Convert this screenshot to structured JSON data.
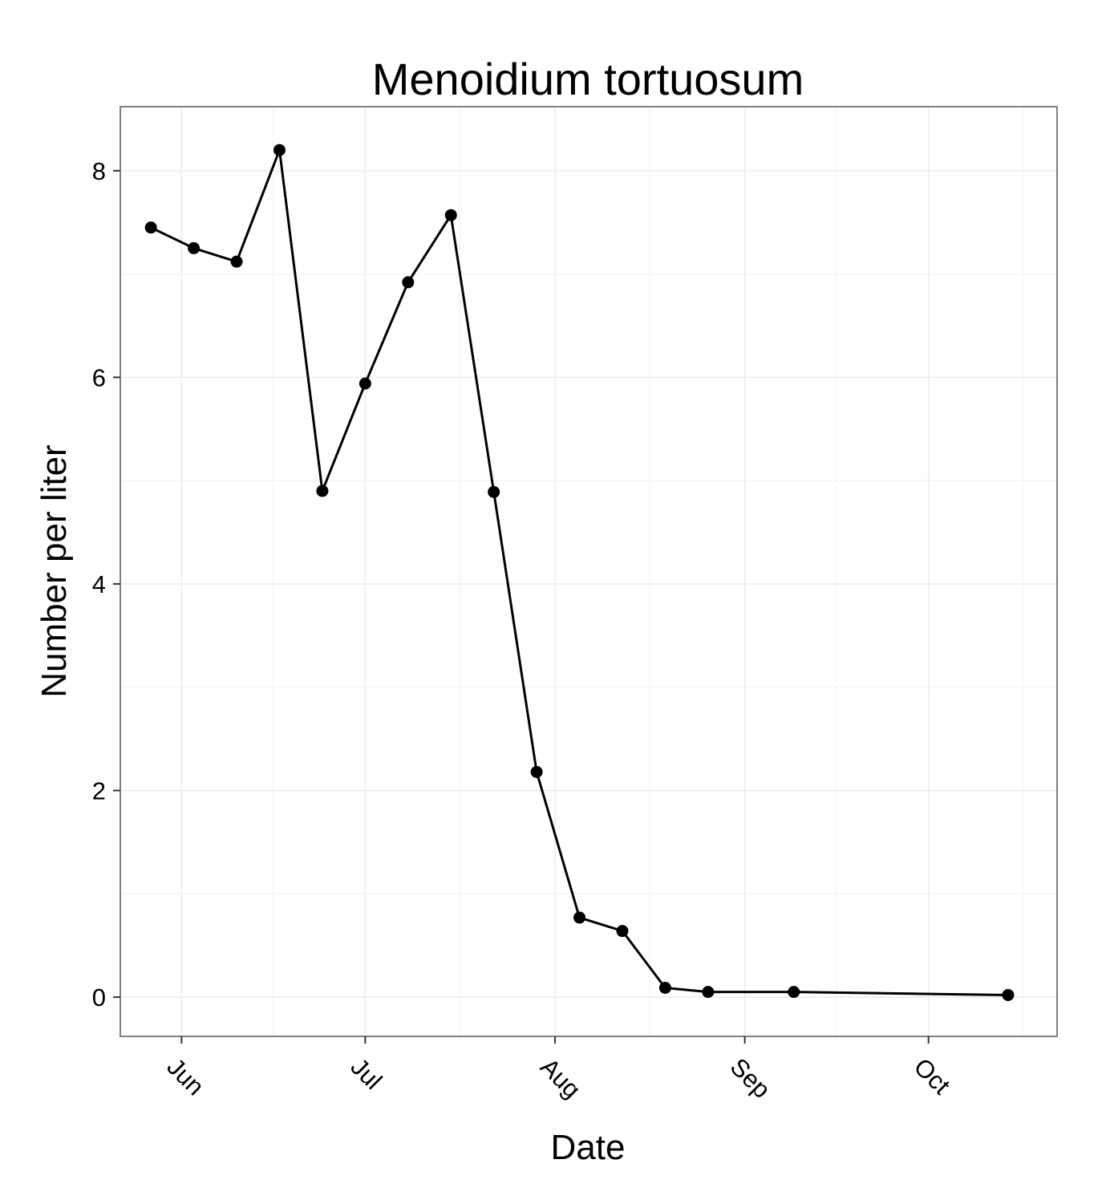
{
  "chart_data": {
    "type": "line",
    "title": "Menoidium tortuosum",
    "xlabel": "Date",
    "ylabel": "Number per liter",
    "x": [
      "2014-05-27",
      "2014-06-03",
      "2014-06-10",
      "2014-06-17",
      "2014-06-24",
      "2014-07-01",
      "2014-07-08",
      "2014-07-15",
      "2014-07-22",
      "2014-07-29",
      "2014-08-05",
      "2014-08-12",
      "2014-08-19",
      "2014-08-26",
      "2014-09-09",
      "2014-10-14"
    ],
    "series": [
      {
        "values": [
          7.45,
          7.25,
          7.12,
          8.2,
          4.9,
          5.94,
          6.92,
          7.57,
          4.89,
          2.18,
          0.77,
          0.64,
          0.09,
          0.05,
          0.05,
          0.02
        ]
      }
    ],
    "xlim": [
      "2014-05-22",
      "2014-10-22"
    ],
    "ylim": [
      -0.38,
      8.62
    ],
    "x_ticks": [
      {
        "label": "Jun",
        "date": "2014-06-01"
      },
      {
        "label": "Jul",
        "date": "2014-07-01"
      },
      {
        "label": "Aug",
        "date": "2014-08-01"
      },
      {
        "label": "Sep",
        "date": "2014-09-01"
      },
      {
        "label": "Oct",
        "date": "2014-10-01"
      }
    ],
    "y_ticks": [
      0,
      2,
      4,
      6,
      8
    ],
    "grid": true,
    "legend": "none",
    "colors": {
      "panel_background": "#ffffff",
      "grid_major": "#ebebeb",
      "grid_minor": "#f5f5f5",
      "panel_border": "#7f7f7f",
      "line": "#000000",
      "point": "#000000"
    }
  }
}
